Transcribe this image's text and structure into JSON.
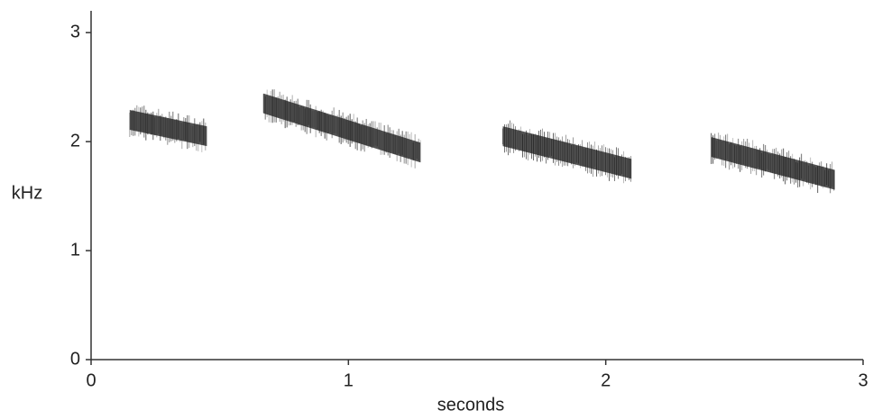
{
  "chart_data": {
    "type": "spectrogram",
    "x_label": "seconds",
    "y_label": "kHz",
    "xlim": [
      0,
      3
    ],
    "xticks": [
      0,
      1,
      2,
      3
    ],
    "ylim": [
      0,
      3.2
    ],
    "yticks": [
      0,
      1,
      2,
      3
    ],
    "color": "#1a1a1a",
    "syllables": [
      {
        "start": 0.15,
        "end": 0.45,
        "freq_start": 2.2,
        "freq_end": 2.05
      },
      {
        "start": 0.67,
        "end": 1.28,
        "freq_start": 2.35,
        "freq_end": 1.9
      },
      {
        "start": 1.6,
        "end": 2.1,
        "freq_start": 2.05,
        "freq_end": 1.75
      },
      {
        "start": 2.41,
        "end": 2.89,
        "freq_start": 1.95,
        "freq_end": 1.65
      }
    ]
  }
}
